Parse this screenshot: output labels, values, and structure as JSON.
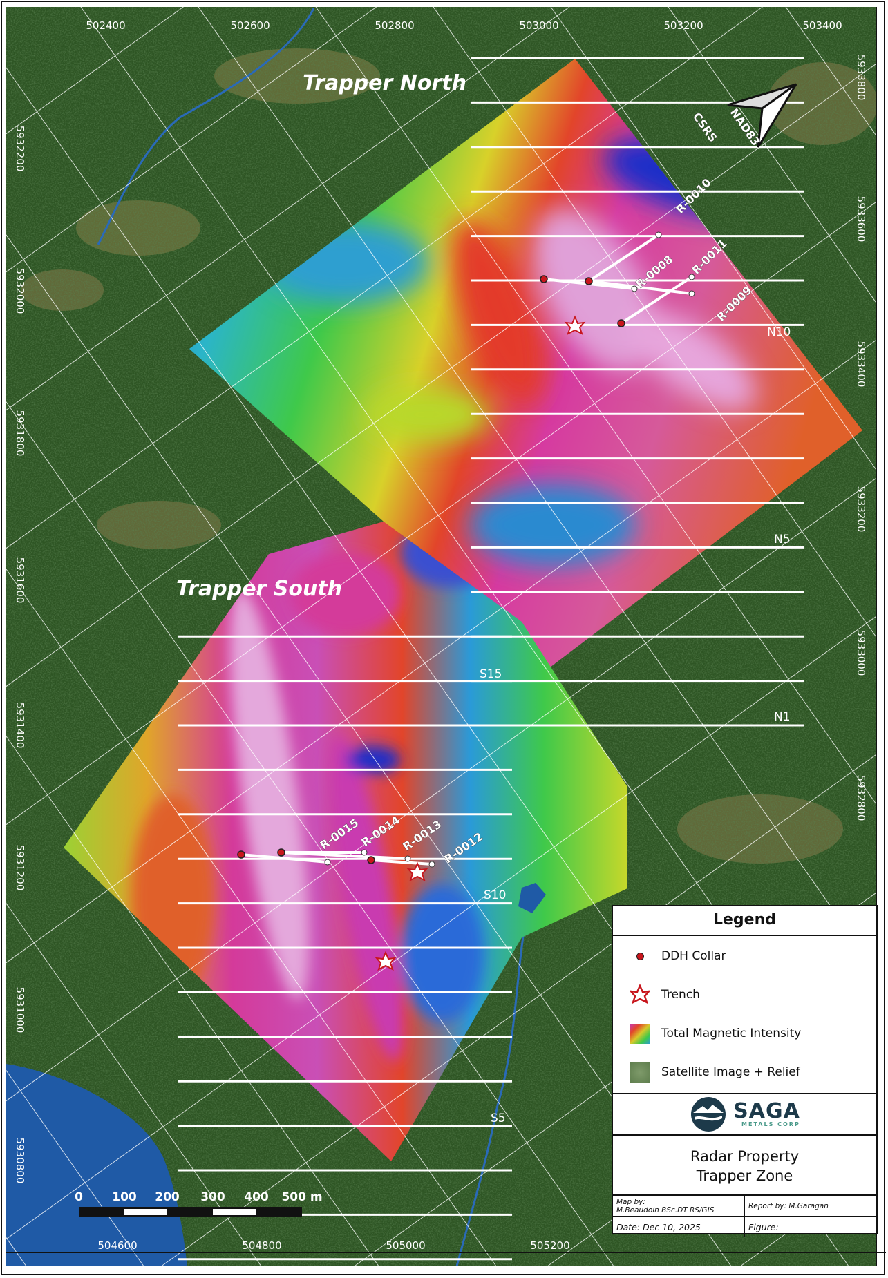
{
  "map": {
    "zones": {
      "north": "Trapper North",
      "south": "Trapper South"
    },
    "easting_labels_top": [
      "502400",
      "502600",
      "502800",
      "503000",
      "503200",
      "503400"
    ],
    "easting_labels_bottom": [
      "504600",
      "504800",
      "505000",
      "505200"
    ],
    "northing_labels_right": [
      "5933800",
      "5933600",
      "5933400",
      "5933200",
      "5933000",
      "5932800"
    ],
    "northing_labels_left": [
      "5932200",
      "5932000",
      "5931800",
      "5931600",
      "5931400",
      "5931200",
      "5931000",
      "5930800"
    ],
    "line_labels": {
      "n10": "N10",
      "n5": "N5",
      "n1": "N1",
      "s15": "S15",
      "s10": "S10",
      "s5": "S5"
    },
    "drill_holes": [
      "R-0010",
      "R-0008",
      "R-0011",
      "R-0009",
      "R-0015",
      "R-0014",
      "R-0013",
      "R-0012"
    ],
    "north_arrow": {
      "datum_line1": "NAD83",
      "datum_line2": "CSRS"
    },
    "scale_bar": {
      "ticks": [
        "0",
        "100",
        "200",
        "300",
        "400",
        "500 m"
      ]
    },
    "colors": {
      "satellite": "#2e5524",
      "lake": "#1f5aa6",
      "collar": "#c8161d",
      "grid": "#ffffff"
    }
  },
  "legend": {
    "title": "Legend",
    "items": [
      {
        "label": "DDH Collar",
        "icon": "red-dot"
      },
      {
        "label": "Trench",
        "icon": "red-white-star"
      },
      {
        "label": "Total Magnetic Intensity",
        "icon": "rainbow-swatch"
      },
      {
        "label": "Satellite Image + Relief",
        "icon": "green-swatch"
      }
    ],
    "logo": {
      "name": "SAGA",
      "sub": "METALS CORP"
    },
    "title_block": {
      "line1": "Radar Property",
      "line2": "Trapper Zone"
    },
    "map_by_label": "Map by:",
    "map_by": "M.Beaudoin BSc.DT RS/GIS",
    "report_by": "Report by: M.Garagan",
    "date": "Date: Dec 10, 2025",
    "figure": "Figure:"
  }
}
